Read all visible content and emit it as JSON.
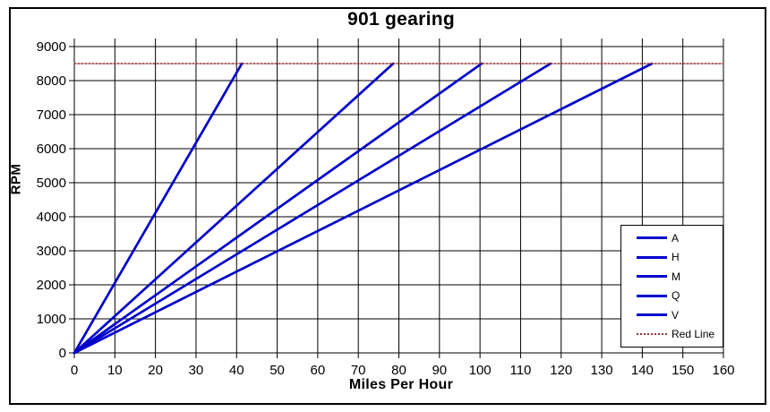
{
  "title": "901 gearing",
  "colors": {
    "series_blue": "#0000CC",
    "redline_red": "#993333",
    "grid_black": "#000000",
    "background": "#FFFFFF"
  },
  "chart_data": {
    "type": "line",
    "title": "901 gearing",
    "xlabel": "Miles Per Hour",
    "ylabel": "RPM",
    "xlim": [
      0,
      160
    ],
    "ylim": [
      0,
      9000
    ],
    "x_ticks": [
      0,
      10,
      20,
      30,
      40,
      50,
      60,
      70,
      80,
      90,
      100,
      110,
      120,
      130,
      140,
      150,
      160
    ],
    "y_ticks": [
      0,
      1000,
      2000,
      3000,
      4000,
      5000,
      6000,
      7000,
      8000,
      9000
    ],
    "grid": true,
    "grid_color": "#000000",
    "legend_position": "inside-right",
    "redline_rpm": 8500,
    "series": [
      {
        "name": "A",
        "style": "solid",
        "color": "#0000CC",
        "points": [
          [
            0,
            0
          ],
          [
            41.3,
            8500
          ]
        ]
      },
      {
        "name": "H",
        "style": "solid",
        "color": "#0000CC",
        "points": [
          [
            0,
            0
          ],
          [
            78.6,
            8500
          ]
        ]
      },
      {
        "name": "M",
        "style": "solid",
        "color": "#0000CC",
        "points": [
          [
            0,
            0
          ],
          [
            100.4,
            8500
          ]
        ]
      },
      {
        "name": "Q",
        "style": "solid",
        "color": "#0000CC",
        "points": [
          [
            0,
            0
          ],
          [
            117.4,
            8500
          ]
        ]
      },
      {
        "name": "V",
        "style": "solid",
        "color": "#0000CC",
        "points": [
          [
            0,
            0
          ],
          [
            142.4,
            8500
          ]
        ]
      },
      {
        "name": "Red Line",
        "style": "dotted",
        "color": "#993333",
        "points": [
          [
            0,
            8500
          ],
          [
            160,
            8500
          ]
        ]
      }
    ]
  }
}
